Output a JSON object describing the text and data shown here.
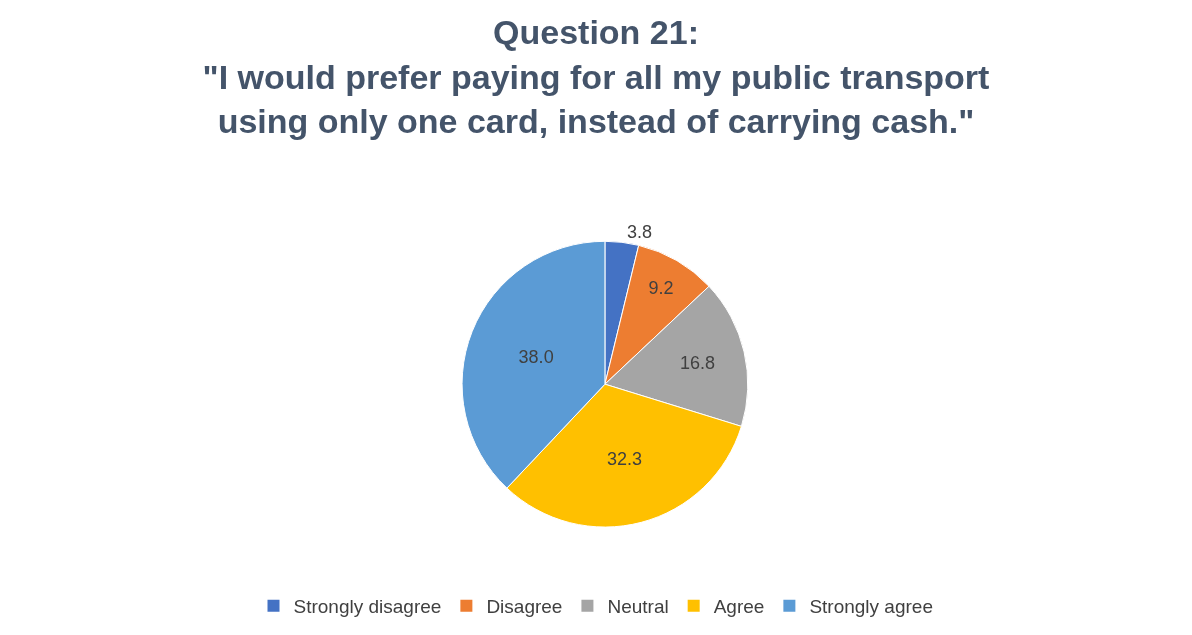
{
  "chart_data": {
    "type": "pie",
    "title": "Question 21:\n\"I would prefer paying for all my public transport\nusing only one card, instead of carrying cash.\"",
    "categories": [
      "Strongly disagree",
      "Disagree",
      "Neutral",
      "Agree",
      "Strongly agree"
    ],
    "values": [
      3.8,
      9.2,
      16.8,
      32.3,
      38.0
    ],
    "colors": [
      "#4472c4",
      "#ed7d31",
      "#a5a5a5",
      "#ffc000",
      "#5b9bd5"
    ],
    "value_labels": [
      "3.8",
      "9.2",
      "16.8",
      "32.3",
      "38.0"
    ],
    "legend": "bottom"
  }
}
